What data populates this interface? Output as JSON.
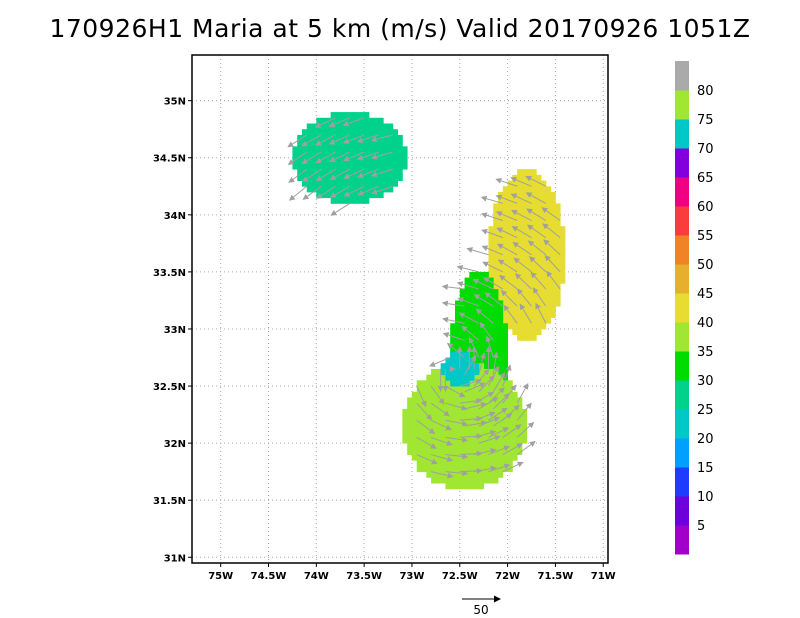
{
  "title": "170926H1 Maria at 5 km (m/s) Valid 20170926 1051Z",
  "chart_data": {
    "type": "heatmap",
    "title": "170926H1 Maria at 5 km (m/s) Valid 20170926 1051Z",
    "xlabel": "",
    "ylabel": "",
    "xlim": [
      -75.3,
      -70.95
    ],
    "ylim": [
      30.95,
      35.4
    ],
    "x_ticks": [
      -75,
      -74.5,
      -74,
      -73.5,
      -73,
      -72.5,
      -72,
      -71.5,
      -71
    ],
    "x_tick_labels": [
      "75W",
      "74.5W",
      "74W",
      "73.5W",
      "73W",
      "72.5W",
      "72W",
      "71.5W",
      "71W"
    ],
    "y_ticks": [
      31,
      31.5,
      32,
      32.5,
      33,
      33.5,
      34,
      34.5,
      35
    ],
    "y_tick_labels": [
      "31N",
      "31.5N",
      "32N",
      "32.5N",
      "33N",
      "33.5N",
      "34N",
      "34.5N",
      "35N"
    ],
    "grid": true,
    "colorbar": {
      "levels": [
        5,
        10,
        15,
        20,
        25,
        30,
        35,
        40,
        45,
        50,
        55,
        60,
        65,
        70,
        75,
        80
      ],
      "labels": [
        "5",
        "10",
        "15",
        "20",
        "25",
        "30",
        "35",
        "40",
        "45",
        "50",
        "55",
        "60",
        "65",
        "70",
        "75",
        "80"
      ],
      "colors": [
        "#a000c8",
        "#6e00dc",
        "#1e3cff",
        "#00a0ff",
        "#00c8c8",
        "#00d28c",
        "#00dc00",
        "#a0e632",
        "#e6dc32",
        "#e6af2d",
        "#f08228",
        "#fa3c3c",
        "#f00082",
        "#8200dc",
        "#00c8c8",
        "#a0e632",
        "#aaaaaa"
      ]
    },
    "wind_regions": [
      {
        "name": "northern arc",
        "speed_class": 25,
        "lon": [
          -74.25,
          -73.05
        ],
        "lat": [
          34.1,
          34.9
        ]
      },
      {
        "name": "eastern band",
        "speed_class": 40,
        "lon": [
          -72.2,
          -71.4
        ],
        "lat": [
          32.9,
          34.4
        ]
      },
      {
        "name": "central core",
        "speed_class": 30,
        "lon": [
          -72.6,
          -72.0
        ],
        "lat": [
          32.0,
          33.5
        ]
      },
      {
        "name": "southern band",
        "speed_class": 35,
        "lon": [
          -73.1,
          -71.8
        ],
        "lat": [
          31.6,
          32.7
        ]
      },
      {
        "name": "low wind center",
        "speed_class": 20,
        "lon": [
          -72.7,
          -72.3
        ],
        "lat": [
          32.5,
          32.8
        ]
      }
    ],
    "reference_vector": {
      "speed": 50,
      "label": "50"
    }
  }
}
